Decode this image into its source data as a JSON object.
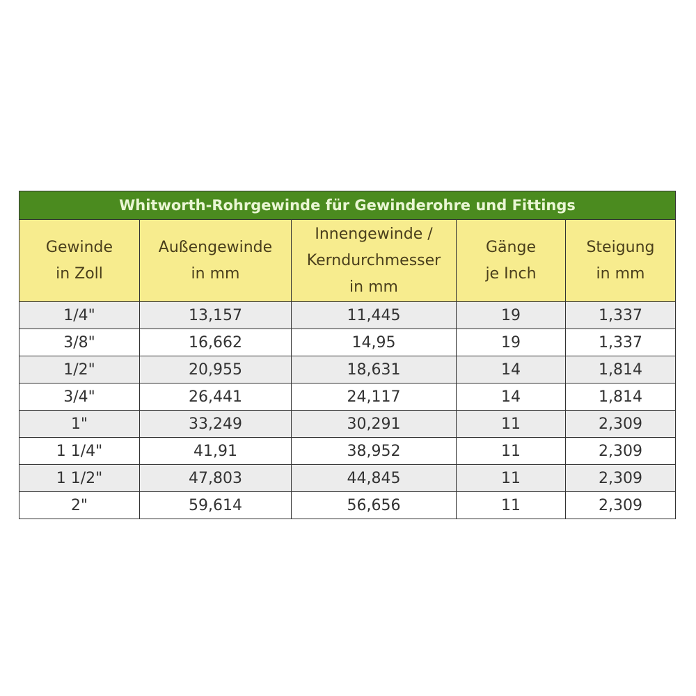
{
  "title": "Whitworth-Rohrgewinde für Gewinderohre und Fittings",
  "headers": [
    [
      "Gewinde",
      "in Zoll"
    ],
    [
      "Außengewinde",
      "in mm"
    ],
    [
      "Innengewinde /",
      "Kerndurchmesser",
      "in mm"
    ],
    [
      "Gänge",
      "je Inch"
    ],
    [
      "Steigung",
      "in mm"
    ]
  ],
  "rows": [
    [
      "1/4\"",
      "13,157",
      "11,445",
      "19",
      "1,337"
    ],
    [
      "3/8\"",
      "16,662",
      "14,95",
      "19",
      "1,337"
    ],
    [
      "1/2\"",
      "20,955",
      "18,631",
      "14",
      "1,814"
    ],
    [
      "3/4\"",
      "26,441",
      "24,117",
      "14",
      "1,814"
    ],
    [
      "1\"",
      "33,249",
      "30,291",
      "11",
      "2,309"
    ],
    [
      "1 1/4\"",
      "41,91",
      "38,952",
      "11",
      "2,309"
    ],
    [
      "1 1/2\"",
      "47,803",
      "44,845",
      "11",
      "2,309"
    ],
    [
      "2\"",
      "59,614",
      "56,656",
      "11",
      "2,309"
    ]
  ],
  "colors": {
    "title_bg": "#4b8b1f",
    "header_bg": "#f7ec8e",
    "row_alt": "#ececec"
  }
}
